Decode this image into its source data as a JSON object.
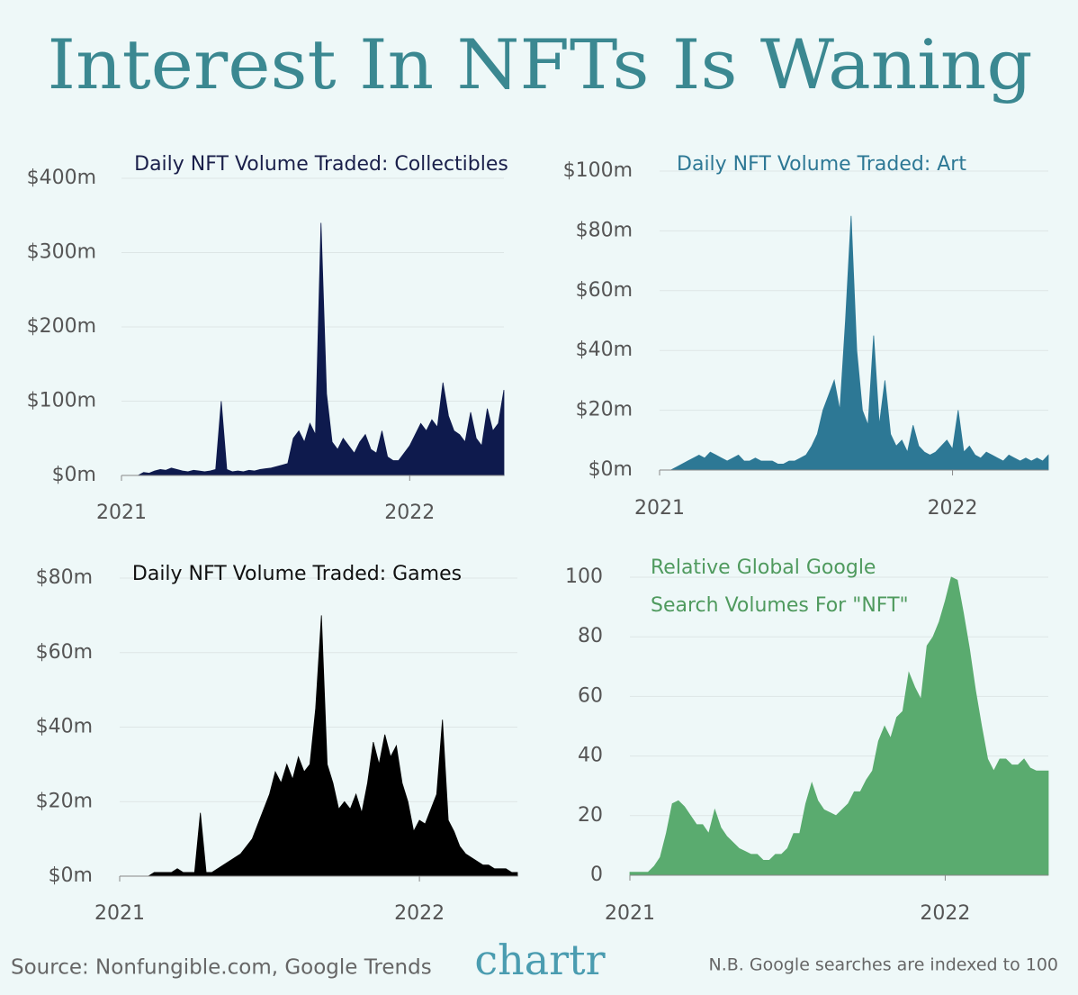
{
  "title": "Interest In NFTs Is Waning",
  "chart_data": [
    {
      "type": "area",
      "title": [
        "Daily NFT Volume Traded: Collectibles"
      ],
      "title_color": "#1a1f4a",
      "color": "#0e1a4d",
      "categories": [
        "2021",
        null,
        null,
        null,
        null,
        null,
        null,
        null,
        null,
        null,
        null,
        null,
        null,
        null,
        null,
        null,
        null,
        null,
        null,
        null,
        null,
        null,
        null,
        null,
        null,
        null,
        null,
        null,
        null,
        null,
        null,
        null,
        null,
        null,
        null,
        null,
        null,
        null,
        null,
        null,
        null,
        null,
        null,
        null,
        null,
        null,
        null,
        null,
        null,
        null,
        null,
        null,
        "2022",
        null,
        null,
        null,
        null,
        null,
        null,
        null,
        null,
        null,
        null,
        null,
        null,
        null,
        null,
        null,
        null,
        null
      ],
      "values": [
        0,
        0,
        0,
        0,
        4,
        3,
        6,
        8,
        7,
        10,
        8,
        6,
        5,
        7,
        6,
        5,
        6,
        8,
        100,
        8,
        5,
        6,
        5,
        7,
        6,
        8,
        9,
        10,
        12,
        14,
        16,
        50,
        60,
        45,
        70,
        55,
        340,
        110,
        45,
        35,
        50,
        40,
        30,
        45,
        55,
        35,
        30,
        60,
        25,
        20,
        20,
        30,
        40,
        55,
        70,
        60,
        75,
        65,
        125,
        80,
        60,
        55,
        45,
        85,
        50,
        40,
        90,
        60,
        70,
        115
      ],
      "ylim": [
        0,
        400
      ],
      "yticks": [
        {
          "value": 0,
          "label": "$0m"
        },
        {
          "value": 100,
          "label": "$100m"
        },
        {
          "value": 200,
          "label": "$200m"
        },
        {
          "value": 300,
          "label": "$300m"
        },
        {
          "value": 400,
          "label": "$400m"
        }
      ],
      "grid": true
    },
    {
      "type": "area",
      "title": [
        "Daily NFT Volume Traded: Art"
      ],
      "title_color": "#2d7895",
      "color": "#2d7895",
      "categories": [
        "2021",
        null,
        null,
        null,
        null,
        null,
        null,
        null,
        null,
        null,
        null,
        null,
        null,
        null,
        null,
        null,
        null,
        null,
        null,
        null,
        null,
        null,
        null,
        null,
        null,
        null,
        null,
        null,
        null,
        null,
        null,
        null,
        null,
        null,
        null,
        null,
        null,
        null,
        null,
        null,
        null,
        null,
        null,
        null,
        null,
        null,
        null,
        null,
        null,
        null,
        null,
        null,
        "2022",
        null,
        null,
        null,
        null,
        null,
        null,
        null,
        null,
        null,
        null,
        null,
        null,
        null,
        null,
        null,
        null,
        null
      ],
      "values": [
        0,
        0,
        0,
        1,
        2,
        3,
        4,
        5,
        4,
        6,
        5,
        4,
        3,
        4,
        5,
        3,
        3,
        4,
        3,
        3,
        3,
        2,
        2,
        3,
        3,
        4,
        5,
        8,
        12,
        20,
        25,
        30,
        20,
        50,
        85,
        40,
        20,
        15,
        45,
        15,
        30,
        12,
        8,
        10,
        6,
        15,
        8,
        6,
        5,
        6,
        8,
        10,
        7,
        20,
        6,
        8,
        5,
        4,
        6,
        5,
        4,
        3,
        5,
        4,
        3,
        4,
        3,
        4,
        3,
        5
      ],
      "ylim": [
        0,
        100
      ],
      "yticks": [
        {
          "value": 0,
          "label": "$0m"
        },
        {
          "value": 20,
          "label": "$20m"
        },
        {
          "value": 40,
          "label": "$40m"
        },
        {
          "value": 60,
          "label": "$60m"
        },
        {
          "value": 80,
          "label": "$80m"
        },
        {
          "value": 100,
          "label": "$100m"
        }
      ],
      "grid": true
    },
    {
      "type": "area",
      "title": [
        "Daily NFT Volume Traded: Games"
      ],
      "title_color": "#111111",
      "color": "#000000",
      "categories": [
        "2021",
        null,
        null,
        null,
        null,
        null,
        null,
        null,
        null,
        null,
        null,
        null,
        null,
        null,
        null,
        null,
        null,
        null,
        null,
        null,
        null,
        null,
        null,
        null,
        null,
        null,
        null,
        null,
        null,
        null,
        null,
        null,
        null,
        null,
        null,
        null,
        null,
        null,
        null,
        null,
        null,
        null,
        null,
        null,
        null,
        null,
        null,
        null,
        null,
        null,
        null,
        null,
        "2022",
        null,
        null,
        null,
        null,
        null,
        null,
        null,
        null,
        null,
        null,
        null,
        null,
        null,
        null,
        null,
        null,
        null
      ],
      "values": [
        0,
        0,
        0,
        0,
        0,
        0,
        1,
        1,
        1,
        1,
        2,
        1,
        1,
        1,
        17,
        1,
        1,
        2,
        3,
        4,
        5,
        6,
        8,
        10,
        14,
        18,
        22,
        28,
        25,
        30,
        26,
        32,
        28,
        30,
        45,
        70,
        30,
        25,
        18,
        20,
        18,
        22,
        17,
        25,
        36,
        30,
        38,
        32,
        35,
        25,
        20,
        12,
        15,
        14,
        18,
        22,
        42,
        15,
        12,
        8,
        6,
        5,
        4,
        3,
        3,
        2,
        2,
        2,
        1,
        1
      ],
      "ylim": [
        0,
        80
      ],
      "yticks": [
        {
          "value": 0,
          "label": "$0m"
        },
        {
          "value": 20,
          "label": "$20m"
        },
        {
          "value": 40,
          "label": "$40m"
        },
        {
          "value": 60,
          "label": "$60m"
        },
        {
          "value": 80,
          "label": "$80m"
        }
      ],
      "grid": true
    },
    {
      "type": "area",
      "title": [
        "Relative Global Google",
        "Search Volumes For \"NFT\""
      ],
      "title_color": "#4f9a5e",
      "color": "#5aab6f",
      "categories": [
        "2021",
        null,
        null,
        null,
        null,
        null,
        null,
        null,
        null,
        null,
        null,
        null,
        null,
        null,
        null,
        null,
        null,
        null,
        null,
        null,
        null,
        null,
        null,
        null,
        null,
        null,
        null,
        null,
        null,
        null,
        null,
        null,
        null,
        null,
        null,
        null,
        null,
        null,
        null,
        null,
        null,
        null,
        null,
        null,
        null,
        null,
        null,
        null,
        null,
        null,
        null,
        null,
        "2022",
        null,
        null,
        null,
        null,
        null,
        null,
        null,
        null,
        null,
        null,
        null,
        null,
        null,
        null,
        null,
        null,
        null
      ],
      "values": [
        1,
        1,
        1,
        1,
        3,
        6,
        14,
        24,
        25,
        23,
        20,
        17,
        17,
        14,
        22,
        16,
        13,
        11,
        9,
        8,
        7,
        7,
        5,
        5,
        7,
        7,
        9,
        14,
        14,
        24,
        31,
        25,
        22,
        21,
        20,
        22,
        24,
        28,
        28,
        32,
        35,
        45,
        50,
        46,
        53,
        55,
        68,
        63,
        59,
        77,
        80,
        85,
        92,
        100,
        99,
        88,
        76,
        62,
        50,
        39,
        35,
        39,
        39,
        37,
        37,
        39,
        36,
        35,
        35,
        35
      ],
      "ylim": [
        0,
        100
      ],
      "yticks": [
        0,
        20,
        40,
        60,
        80,
        100
      ],
      "grid": true
    }
  ],
  "source": "Source: Nonfungible.com, Google Trends",
  "brand": "chartr",
  "note": "N.B. Google searches are indexed to 100"
}
